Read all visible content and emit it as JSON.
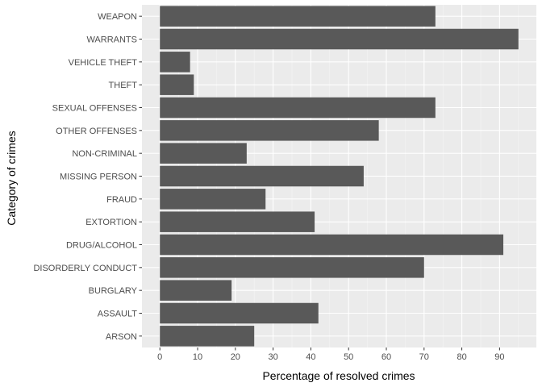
{
  "chart_data": {
    "type": "bar",
    "orientation": "horizontal",
    "categories": [
      "ARSON",
      "ASSAULT",
      "BURGLARY",
      "DISORDERLY CONDUCT",
      "DRUG/ALCOHOL",
      "EXTORTION",
      "FRAUD",
      "MISSING PERSON",
      "NON-CRIMINAL",
      "OTHER OFFENSES",
      "SEXUAL OFFENSES",
      "THEFT",
      "VEHICLE THEFT",
      "WARRANTS",
      "WEAPON"
    ],
    "values": [
      25,
      42,
      19,
      70,
      91,
      41,
      28,
      54,
      23,
      58,
      73,
      9,
      8,
      95,
      73
    ],
    "xlabel": "Percentage of resolved crimes",
    "ylabel": "Category of crimes",
    "xticks": [
      "0",
      "10",
      "20",
      "30",
      "40",
      "50",
      "60",
      "70",
      "80",
      "90"
    ],
    "xlim": [
      -4.75,
      99.75
    ],
    "grid": true,
    "colors": {
      "bar": "#595959",
      "panel": "#ebebeb",
      "grid_major": "#ffffff",
      "grid_minor": "#f5f5f5",
      "tick_text": "#4d4d4d",
      "tick_mark": "#333333"
    }
  }
}
